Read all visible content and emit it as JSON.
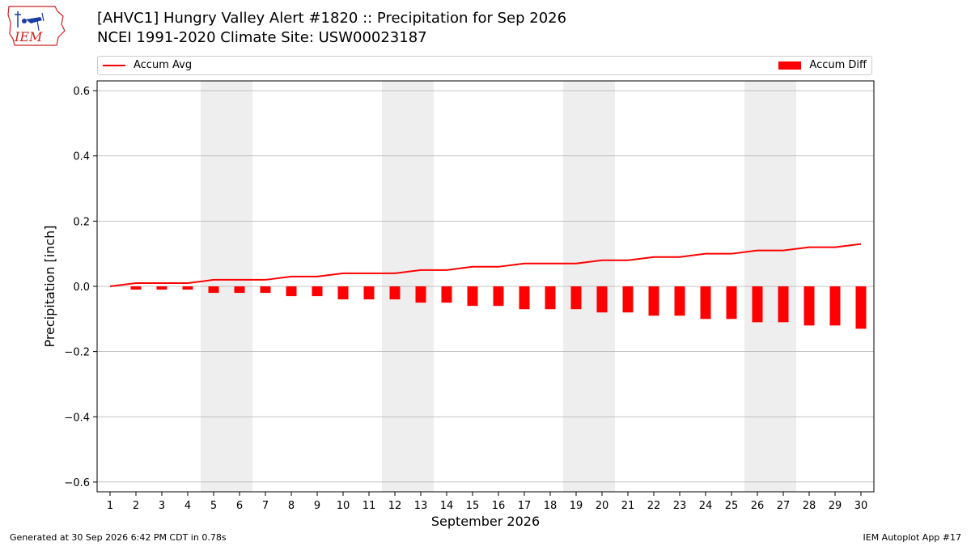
{
  "title": {
    "line1": "[AHVC1] Hungry Valley Alert #1820 :: Precipitation for Sep 2026",
    "line2": "NCEI 1991-2020 Climate Site: USW00023187"
  },
  "logo": {
    "text": "IEM",
    "icon": "iem-logo"
  },
  "legend": {
    "avg_label": "Accum Avg",
    "diff_label": "Accum Diff",
    "placement": "top"
  },
  "footer": {
    "left": "Generated at 30 Sep 2026 6:42 PM CDT in 0.78s",
    "right": "IEM Autoplot App #17"
  },
  "colors": {
    "series": "#ff0000",
    "weekend_shade": "#eeeeee",
    "grid": "#b0b0b0"
  },
  "chart_data": {
    "type": "bar",
    "xlabel": "September 2026",
    "ylabel": "Precipitation [inch]",
    "ylim": [
      -0.63,
      0.63
    ],
    "yticks": [
      -0.6,
      -0.4,
      -0.2,
      0.0,
      0.2,
      0.4,
      0.6
    ],
    "ytick_labels": [
      "−0.6",
      "−0.4",
      "−0.2",
      "0.0",
      "0.2",
      "0.4",
      "0.6"
    ],
    "grid": true,
    "shaded_days": [
      [
        5,
        6
      ],
      [
        12,
        13
      ],
      [
        19,
        20
      ],
      [
        26,
        27
      ]
    ],
    "x": [
      1,
      2,
      3,
      4,
      5,
      6,
      7,
      8,
      9,
      10,
      11,
      12,
      13,
      14,
      15,
      16,
      17,
      18,
      19,
      20,
      21,
      22,
      23,
      24,
      25,
      26,
      27,
      28,
      29,
      30
    ],
    "series": [
      {
        "name": "Accum Avg",
        "type": "line",
        "values": [
          0.0,
          0.01,
          0.01,
          0.01,
          0.02,
          0.02,
          0.02,
          0.03,
          0.03,
          0.04,
          0.04,
          0.04,
          0.05,
          0.05,
          0.06,
          0.06,
          0.07,
          0.07,
          0.07,
          0.08,
          0.08,
          0.09,
          0.09,
          0.1,
          0.1,
          0.11,
          0.11,
          0.12,
          0.12,
          0.13
        ]
      },
      {
        "name": "Accum Diff",
        "type": "bar",
        "values": [
          0.0,
          -0.01,
          -0.01,
          -0.01,
          -0.02,
          -0.02,
          -0.02,
          -0.03,
          -0.03,
          -0.04,
          -0.04,
          -0.04,
          -0.05,
          -0.05,
          -0.06,
          -0.06,
          -0.07,
          -0.07,
          -0.07,
          -0.08,
          -0.08,
          -0.09,
          -0.09,
          -0.1,
          -0.1,
          -0.11,
          -0.11,
          -0.12,
          -0.12,
          -0.13
        ]
      }
    ]
  }
}
